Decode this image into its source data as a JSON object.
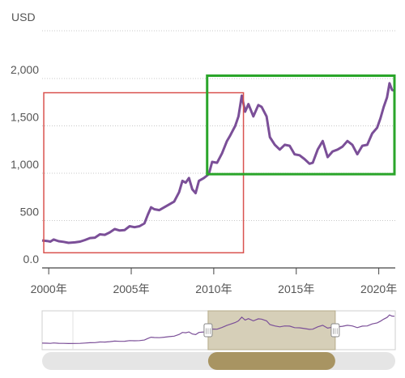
{
  "chart_data": {
    "type": "line",
    "unit": "USD",
    "y_ticks": [
      {
        "value": 0,
        "label": "0.0"
      },
      {
        "value": 500,
        "label": "500"
      },
      {
        "value": 1000,
        "label": "1,000"
      },
      {
        "value": 1500,
        "label": "1,500"
      },
      {
        "value": 2000,
        "label": "2,000"
      }
    ],
    "x_ticks": [
      {
        "value": 2000,
        "label": "2000年"
      },
      {
        "value": 2005,
        "label": "2005年"
      },
      {
        "value": 2010,
        "label": "2010年"
      },
      {
        "value": 2015,
        "label": "2015年"
      },
      {
        "value": 2020,
        "label": "2020年"
      }
    ],
    "xlim": [
      1999.6,
      2021.0
    ],
    "ylim": [
      0,
      2000
    ],
    "grid": "horizontal-dotted",
    "series": [
      {
        "color": "#7b4f98",
        "points": [
          [
            1999.6,
            290
          ],
          [
            1999.9,
            285
          ],
          [
            2000.1,
            278
          ],
          [
            2000.3,
            300
          ],
          [
            2000.6,
            282
          ],
          [
            2000.9,
            275
          ],
          [
            2001.2,
            265
          ],
          [
            2001.6,
            270
          ],
          [
            2001.9,
            278
          ],
          [
            2002.2,
            295
          ],
          [
            2002.5,
            315
          ],
          [
            2002.8,
            320
          ],
          [
            2003.1,
            355
          ],
          [
            2003.4,
            350
          ],
          [
            2003.7,
            375
          ],
          [
            2004.0,
            410
          ],
          [
            2004.3,
            395
          ],
          [
            2004.6,
            400
          ],
          [
            2004.9,
            440
          ],
          [
            2005.2,
            430
          ],
          [
            2005.5,
            440
          ],
          [
            2005.8,
            470
          ],
          [
            2006.0,
            560
          ],
          [
            2006.2,
            640
          ],
          [
            2006.4,
            620
          ],
          [
            2006.7,
            610
          ],
          [
            2007.0,
            640
          ],
          [
            2007.3,
            670
          ],
          [
            2007.6,
            700
          ],
          [
            2007.9,
            800
          ],
          [
            2008.1,
            920
          ],
          [
            2008.3,
            900
          ],
          [
            2008.5,
            950
          ],
          [
            2008.7,
            830
          ],
          [
            2008.9,
            790
          ],
          [
            2009.1,
            920
          ],
          [
            2009.4,
            950
          ],
          [
            2009.7,
            990
          ],
          [
            2009.9,
            1120
          ],
          [
            2010.2,
            1110
          ],
          [
            2010.5,
            1210
          ],
          [
            2010.8,
            1340
          ],
          [
            2011.0,
            1400
          ],
          [
            2011.3,
            1500
          ],
          [
            2011.5,
            1600
          ],
          [
            2011.7,
            1820
          ],
          [
            2011.9,
            1650
          ],
          [
            2012.1,
            1730
          ],
          [
            2012.4,
            1600
          ],
          [
            2012.7,
            1720
          ],
          [
            2012.9,
            1700
          ],
          [
            2013.2,
            1600
          ],
          [
            2013.4,
            1380
          ],
          [
            2013.7,
            1300
          ],
          [
            2014.0,
            1250
          ],
          [
            2014.3,
            1300
          ],
          [
            2014.6,
            1290
          ],
          [
            2014.9,
            1200
          ],
          [
            2015.2,
            1190
          ],
          [
            2015.5,
            1150
          ],
          [
            2015.8,
            1100
          ],
          [
            2016.0,
            1110
          ],
          [
            2016.3,
            1250
          ],
          [
            2016.6,
            1340
          ],
          [
            2016.9,
            1170
          ],
          [
            2017.2,
            1230
          ],
          [
            2017.5,
            1250
          ],
          [
            2017.8,
            1280
          ],
          [
            2018.1,
            1340
          ],
          [
            2018.4,
            1300
          ],
          [
            2018.7,
            1200
          ],
          [
            2019.0,
            1290
          ],
          [
            2019.3,
            1300
          ],
          [
            2019.6,
            1420
          ],
          [
            2019.9,
            1480
          ],
          [
            2020.1,
            1580
          ],
          [
            2020.3,
            1700
          ],
          [
            2020.5,
            1800
          ],
          [
            2020.65,
            1950
          ],
          [
            2020.8,
            1880
          ],
          [
            2020.95,
            1870
          ]
        ]
      }
    ],
    "annotations": [
      {
        "type": "box",
        "color": "#d9534f",
        "x_range": [
          1999.7,
          2011.8
        ],
        "y_range": [
          160,
          1850
        ]
      },
      {
        "type": "box",
        "color": "#2aa52a",
        "x_range": [
          2009.6,
          2020.95
        ],
        "y_range": [
          990,
          2030
        ]
      }
    ]
  },
  "navigator": {
    "selection_start": 0.47,
    "selection_end": 0.83,
    "handle_glyph": "|||"
  }
}
